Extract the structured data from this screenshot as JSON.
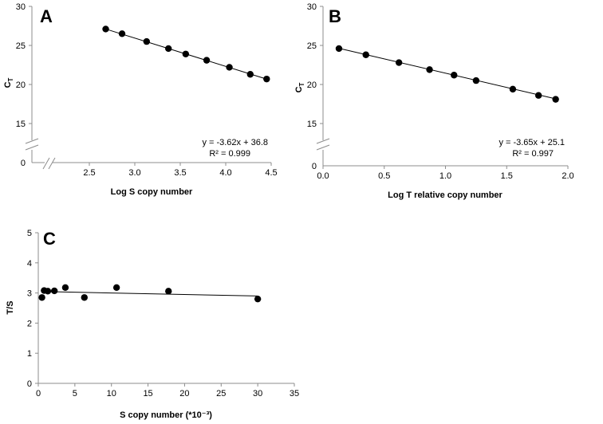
{
  "chart_data": [
    {
      "type": "scatter",
      "panel_letter": "A",
      "title": "",
      "xlabel": "Log S copy number",
      "ylabel_main": "C",
      "ylabel_sub": "T",
      "xlim": [
        2.0,
        4.5
      ],
      "ylim": [
        10,
        30
      ],
      "y_break": true,
      "x_break": true,
      "x_ticks": [
        "2.5",
        "3.0",
        "3.5",
        "4.0",
        "4.5"
      ],
      "x_tick_values": [
        2.5,
        3.0,
        3.5,
        4.0,
        4.5
      ],
      "y_ticks": [
        "15",
        "20",
        "25",
        "30"
      ],
      "y_tick_values": [
        15,
        20,
        25,
        30
      ],
      "y_origin_label": "0",
      "x": [
        2.68,
        2.86,
        3.13,
        3.37,
        3.56,
        3.79,
        4.04,
        4.27,
        4.45
      ],
      "y": [
        27.1,
        26.5,
        25.5,
        24.6,
        23.9,
        23.1,
        22.2,
        21.3,
        20.7
      ],
      "fit": {
        "slope": -3.62,
        "intercept": 36.8,
        "x_range": [
          2.68,
          4.45
        ]
      },
      "equation": "y = -3.62x + 36.8",
      "r2_label": "R² = 0.999"
    },
    {
      "type": "scatter",
      "panel_letter": "B",
      "title": "",
      "xlabel": "Log T relative copy number",
      "ylabel_main": "C",
      "ylabel_sub": "T",
      "xlim": [
        0.0,
        2.0
      ],
      "ylim": [
        10,
        30
      ],
      "y_break": true,
      "x_break": false,
      "x_ticks": [
        "0.0",
        "0.5",
        "1.0",
        "1.5",
        "2.0"
      ],
      "x_tick_values": [
        0.0,
        0.5,
        1.0,
        1.5,
        2.0
      ],
      "y_ticks": [
        "15",
        "20",
        "25",
        "30"
      ],
      "y_tick_values": [
        15,
        20,
        25,
        30
      ],
      "y_origin_label": "0",
      "x": [
        0.13,
        0.35,
        0.62,
        0.87,
        1.07,
        1.25,
        1.55,
        1.76,
        1.9
      ],
      "y": [
        24.6,
        23.8,
        22.8,
        21.9,
        21.2,
        20.5,
        19.4,
        18.6,
        18.1
      ],
      "fit": {
        "slope": -3.65,
        "intercept": 25.1,
        "x_range": [
          0.13,
          1.9
        ]
      },
      "equation": "y = -3.65x + 25.1",
      "r2_label": "R² = 0.997"
    },
    {
      "type": "scatter",
      "panel_letter": "C",
      "title": "",
      "xlabel": "S copy number (*10⁻³)",
      "ylabel": "T/S",
      "xlim": [
        0,
        35
      ],
      "ylim": [
        0,
        5
      ],
      "x_ticks": [
        "0",
        "5",
        "10",
        "15",
        "20",
        "25",
        "30",
        "35"
      ],
      "x_tick_values": [
        0,
        5,
        10,
        15,
        20,
        25,
        30,
        35
      ],
      "y_ticks": [
        "0",
        "1",
        "2",
        "3",
        "4",
        "5"
      ],
      "y_tick_values": [
        0,
        1,
        2,
        3,
        4,
        5
      ],
      "x": [
        0.5,
        0.8,
        1.3,
        2.2,
        3.7,
        6.3,
        10.7,
        17.8,
        30.0
      ],
      "y": [
        2.85,
        3.08,
        3.06,
        3.07,
        3.18,
        2.85,
        3.18,
        3.06,
        2.8
      ],
      "fit": {
        "slope": -0.005,
        "intercept": 3.05,
        "x_range": [
          0.5,
          30.0
        ]
      }
    }
  ]
}
